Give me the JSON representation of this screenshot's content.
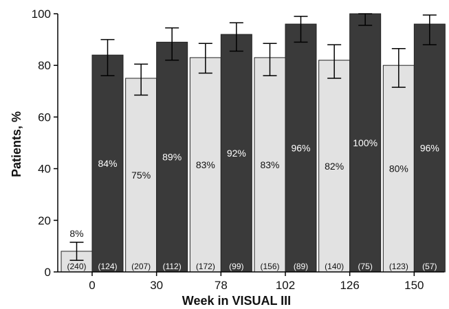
{
  "chart_data": {
    "type": "bar",
    "xlabel": "Week in VISUAL III",
    "ylabel": "Patients, %",
    "ylim": [
      0,
      100
    ],
    "yticks": [
      0,
      20,
      40,
      60,
      80,
      100
    ],
    "categories": [
      "0",
      "30",
      "78",
      "102",
      "126",
      "150"
    ],
    "grid": false,
    "series": [
      {
        "color": "#e2e2e2",
        "label_color": "#111111",
        "values": [
          8,
          75,
          83,
          83,
          82,
          80
        ],
        "value_labels": [
          "8%",
          "75%",
          "83%",
          "83%",
          "82%",
          "80%"
        ],
        "error_low": [
          4.5,
          68.5,
          77,
          76,
          75,
          71.5
        ],
        "error_high": [
          11.5,
          80.5,
          88.5,
          88.5,
          88,
          86.5
        ],
        "n_labels": [
          "(240)",
          "(207)",
          "(172)",
          "(156)",
          "(140)",
          "(123)"
        ]
      },
      {
        "color": "#3a3a3a",
        "label_color": "#ffffff",
        "values": [
          84,
          89,
          92,
          96,
          100,
          96
        ],
        "value_labels": [
          "84%",
          "89%",
          "92%",
          "96%",
          "100%",
          "96%"
        ],
        "error_low": [
          76,
          82,
          85.5,
          89,
          95.5,
          88
        ],
        "error_high": [
          90,
          94.5,
          96.5,
          99,
          100,
          99.5
        ],
        "n_labels": [
          "(124)",
          "(112)",
          "(99)",
          "(89)",
          "(75)",
          "(57)"
        ]
      }
    ]
  }
}
